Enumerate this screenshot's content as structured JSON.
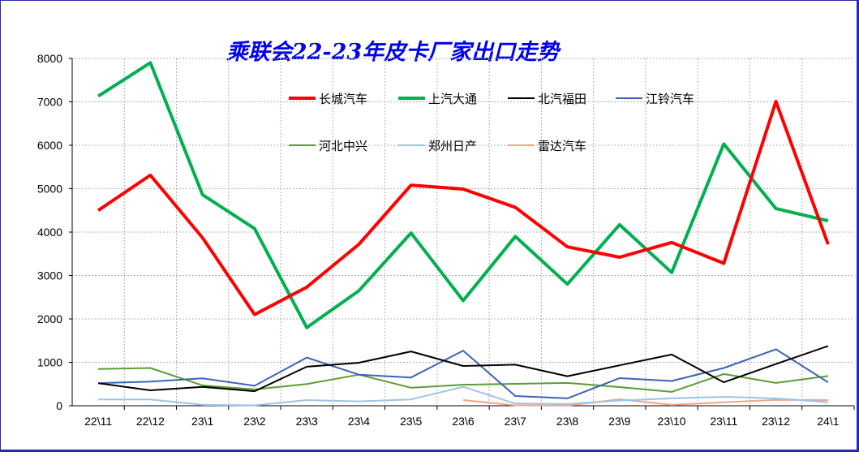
{
  "chart_data": {
    "type": "line",
    "title": "乘联会22-23年皮卡厂家出口走势",
    "categories": [
      "22\\11",
      "22\\12",
      "23\\1",
      "23\\2",
      "23\\3",
      "23\\4",
      "23\\5",
      "23\\6",
      "23\\7",
      "23\\8",
      "23\\9",
      "23\\10",
      "23\\11",
      "23\\12",
      "24\\1"
    ],
    "ylim": [
      0,
      8000
    ],
    "yticks": [
      "0",
      "1000",
      "2000",
      "3000",
      "4000",
      "5000",
      "6000",
      "7000",
      "8000"
    ],
    "grid": true,
    "legend_position": "top-right",
    "series": [
      {
        "name": "长城汽车",
        "color": "#ff0000",
        "width": 4,
        "values": [
          4500,
          5310,
          3870,
          2100,
          2730,
          3720,
          5080,
          4990,
          4570,
          3660,
          3420,
          3760,
          3280,
          7010,
          3720
        ]
      },
      {
        "name": "上汽大通",
        "color": "#00b050",
        "width": 4,
        "values": [
          7130,
          7900,
          4860,
          4080,
          1800,
          2650,
          3980,
          2420,
          3900,
          2800,
          4170,
          3070,
          6030,
          4540,
          4260
        ]
      },
      {
        "name": "北汽福田",
        "color": "#000000",
        "width": 2,
        "values": [
          520,
          355,
          435,
          335,
          900,
          990,
          1250,
          915,
          945,
          680,
          930,
          1180,
          540,
          960,
          1375
        ]
      },
      {
        "name": "江铃汽车",
        "color": "#3a64b4",
        "width": 2,
        "values": [
          520,
          555,
          630,
          460,
          1110,
          715,
          650,
          1270,
          225,
          170,
          635,
          570,
          870,
          1300,
          540
        ]
      },
      {
        "name": "河北中兴",
        "color": "#5a9e32",
        "width": 2,
        "values": [
          845,
          870,
          470,
          375,
          500,
          715,
          415,
          485,
          505,
          525,
          430,
          320,
          730,
          525,
          685
        ]
      },
      {
        "name": "郑州日产",
        "color": "#9dc3e6",
        "width": 2,
        "values": [
          145,
          145,
          20,
          10,
          130,
          100,
          145,
          435,
          50,
          40,
          120,
          170,
          205,
          170,
          80
        ]
      },
      {
        "name": "雷达汽车",
        "color": "#f4a582",
        "width": 2,
        "values": [
          null,
          null,
          null,
          null,
          null,
          null,
          null,
          130,
          10,
          5,
          150,
          20,
          80,
          135,
          130
        ]
      }
    ]
  }
}
